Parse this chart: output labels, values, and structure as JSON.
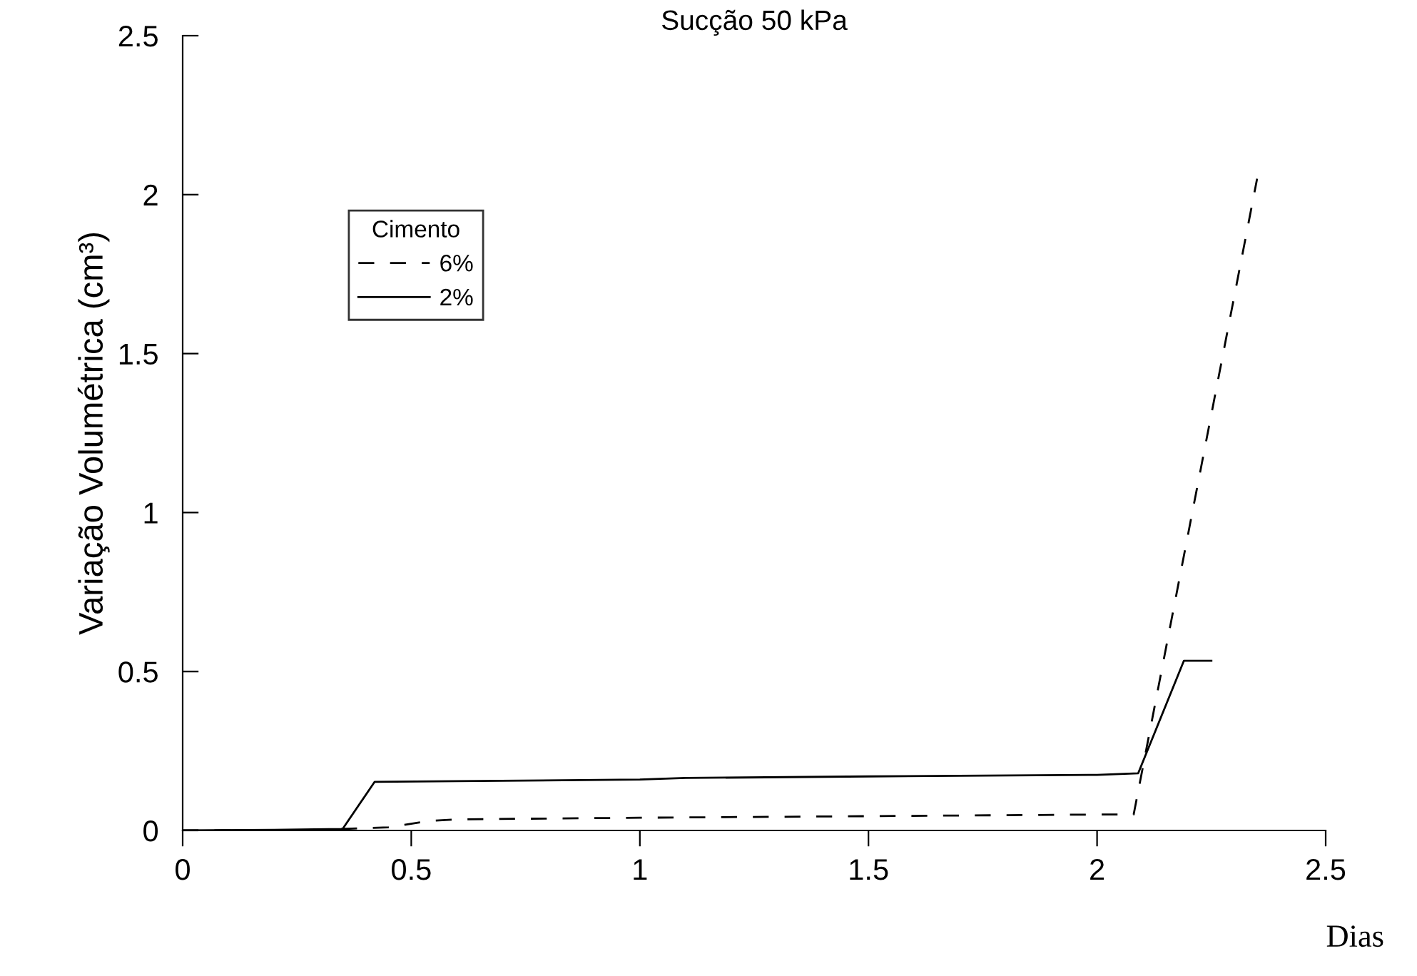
{
  "chart_data": {
    "type": "line",
    "title": "Sucção 50 kPa",
    "xlabel": "Dias",
    "ylabel": "Variação Volumétrica (cm³)",
    "legend_title": "Cimento",
    "legend": "top left",
    "grid": false,
    "marker": "none",
    "xlim": [
      0,
      2.5
    ],
    "xticks": [
      0,
      0.5,
      1,
      1.5,
      2,
      2.5
    ],
    "ylim": [
      0,
      2.5
    ],
    "yticks": [
      0,
      0.5,
      1,
      1.5,
      2,
      2.5
    ],
    "series": [
      {
        "name": "6%",
        "color": "#000000",
        "line_style": "dashed",
        "x": [
          0,
          0.3,
          0.45,
          0.54,
          0.6,
          1.0,
          1.5,
          2.0,
          2.08,
          2.35
        ],
        "values": [
          0,
          0.002,
          0.01,
          0.03,
          0.035,
          0.04,
          0.045,
          0.05,
          0.05,
          2.05
        ]
      },
      {
        "name": "2%",
        "color": "#000000",
        "line_style": "solid",
        "x": [
          0,
          0.2,
          0.35,
          0.42,
          0.6,
          1.0,
          1.1,
          1.5,
          2.0,
          2.09,
          2.19,
          2.25
        ],
        "values": [
          0,
          0.002,
          0.005,
          0.153,
          0.155,
          0.16,
          0.165,
          0.17,
          0.175,
          0.18,
          0.534,
          0.534
        ]
      }
    ]
  }
}
